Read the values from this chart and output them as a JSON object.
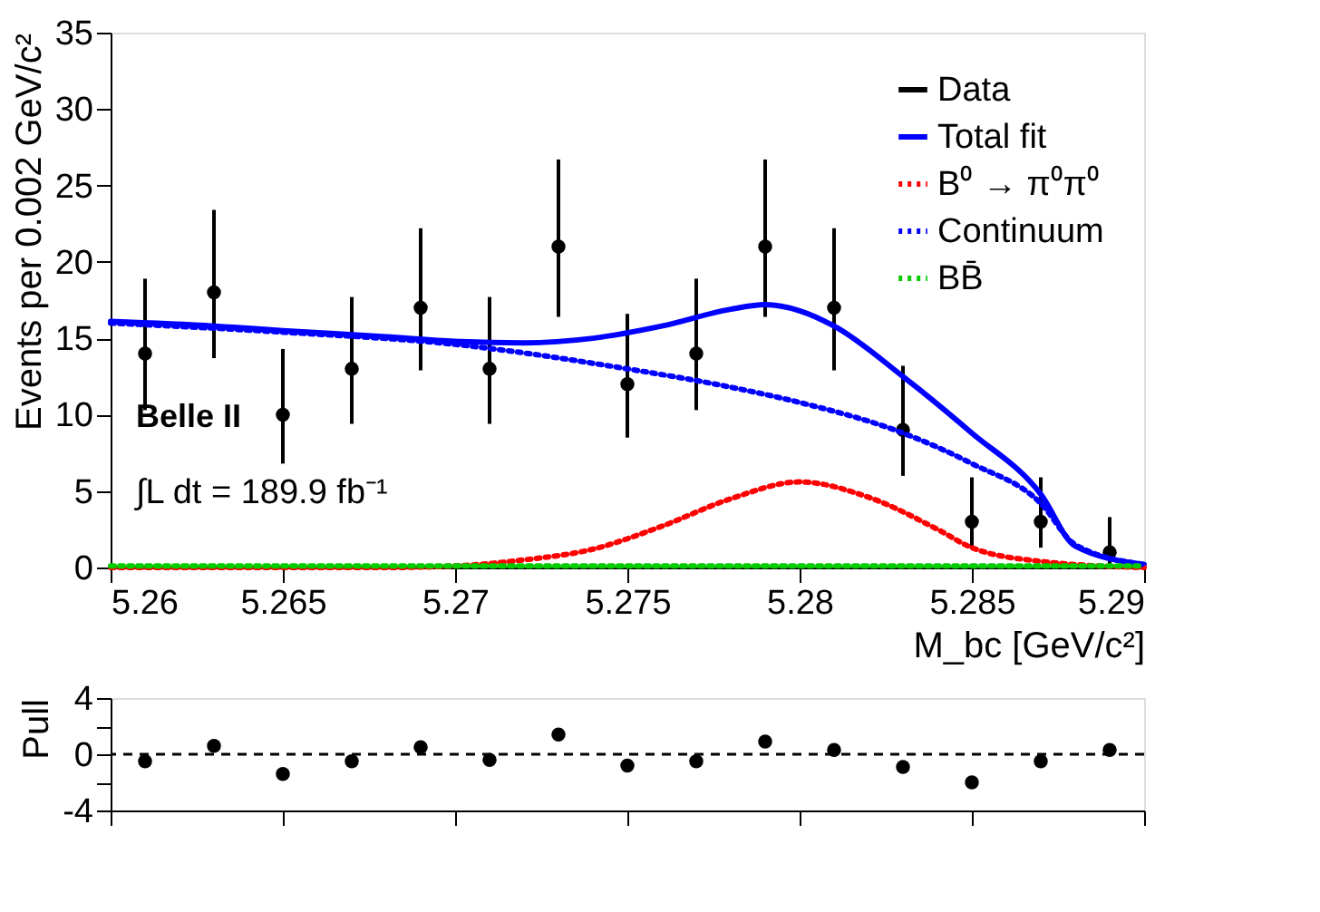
{
  "chart_data": [
    {
      "type": "line",
      "ylabel": "Events per 0.002 GeV/c²",
      "xlabel": "M_bc [GeV/c²]",
      "xlim": [
        5.26,
        5.29
      ],
      "xticks": [
        5.26,
        5.265,
        5.27,
        5.275,
        5.28,
        5.285,
        5.29
      ],
      "ylim": [
        0,
        35
      ],
      "yticks": [
        0,
        5,
        10,
        15,
        20,
        25,
        30,
        35
      ],
      "grid": false,
      "legend": "top right",
      "annotations": [
        "Belle II",
        "∫L dt = 189.9 fb⁻¹"
      ],
      "series": [
        {
          "name": "Data",
          "type": "scatter",
          "marker": "circle",
          "color": "#000000",
          "x": [
            5.261,
            5.263,
            5.265,
            5.267,
            5.269,
            5.271,
            5.273,
            5.275,
            5.277,
            5.279,
            5.281,
            5.283,
            5.285,
            5.287,
            5.289
          ],
          "values": [
            14,
            18,
            10,
            13,
            17,
            13,
            21,
            12,
            14,
            21,
            17,
            9,
            3,
            3,
            1
          ],
          "errors": [
            [
              10.3,
              18.9
            ],
            [
              13.7,
              23.4
            ],
            [
              6.8,
              14.3
            ],
            [
              9.4,
              17.7
            ],
            [
              12.9,
              22.2
            ],
            [
              9.4,
              17.7
            ],
            [
              16.4,
              26.7
            ],
            [
              8.5,
              16.6
            ],
            [
              10.3,
              18.9
            ],
            [
              16.4,
              26.7
            ],
            [
              12.9,
              22.2
            ],
            [
              6,
              13.2
            ],
            [
              1.3,
              5.9
            ],
            [
              1.3,
              5.9
            ],
            [
              0.2,
              3.3
            ]
          ]
        },
        {
          "name": "Total fit",
          "type": "line",
          "line_style": "solid",
          "color": "#0000ff",
          "x": [
            5.26,
            5.263,
            5.265,
            5.268,
            5.27,
            5.272,
            5.274,
            5.276,
            5.278,
            5.279,
            5.28,
            5.281,
            5.283,
            5.285,
            5.287,
            5.288,
            5.29
          ],
          "values": [
            16.1,
            15.8,
            15.5,
            15.1,
            14.8,
            14.7,
            15.0,
            15.8,
            16.9,
            17.2,
            16.8,
            15.8,
            12.5,
            8.8,
            4.8,
            1.4,
            0.2
          ]
        },
        {
          "name": "B⁰ → π⁰π⁰",
          "type": "line",
          "line_style": "dotted",
          "color": "#ff0000",
          "x": [
            5.26,
            5.268,
            5.27,
            5.272,
            5.274,
            5.276,
            5.278,
            5.28,
            5.282,
            5.284,
            5.285,
            5.287,
            5.29
          ],
          "values": [
            0,
            0,
            0.1,
            0.5,
            1.2,
            2.7,
            4.5,
            5.6,
            4.6,
            2.5,
            1.3,
            0.4,
            0
          ]
        },
        {
          "name": "Continuum",
          "type": "line",
          "line_style": "dotted",
          "color": "#0000ff",
          "x": [
            5.26,
            5.265,
            5.27,
            5.275,
            5.278,
            5.28,
            5.283,
            5.285,
            5.287,
            5.288,
            5.29
          ],
          "values": [
            16.0,
            15.4,
            14.6,
            13.0,
            11.8,
            10.8,
            8.8,
            6.8,
            4.2,
            1.5,
            0.2
          ]
        },
        {
          "name": "BB̄",
          "type": "line",
          "line_style": "dotted",
          "color": "#00cc00",
          "x": [
            5.26,
            5.29
          ],
          "values": [
            0.1,
            0.1
          ]
        }
      ]
    },
    {
      "type": "scatter",
      "ylabel": "Pull",
      "marker": "circle",
      "tick_labels": "y",
      "grid": false,
      "legend": false,
      "xlim": [
        5.26,
        5.29
      ],
      "xticks": [
        5.26,
        5.265,
        5.27,
        5.275,
        5.28,
        5.285,
        5.29
      ],
      "ylim": [
        -4,
        4
      ],
      "yticks": [
        -4,
        {
          "value": -2,
          "label": null
        },
        0,
        {
          "value": 2,
          "label": null
        },
        4
      ],
      "ref_lines": [
        {
          "axis": "y",
          "value": 0,
          "label": null,
          "color": "#000000",
          "line_style": "dashed"
        }
      ],
      "series": [
        {
          "color": "#000000",
          "x": [
            5.261,
            5.263,
            5.265,
            5.267,
            5.269,
            5.271,
            5.273,
            5.275,
            5.277,
            5.279,
            5.281,
            5.283,
            5.285,
            5.287,
            5.289
          ],
          "values": [
            -0.5,
            0.6,
            -1.4,
            -0.5,
            0.5,
            -0.4,
            1.4,
            -0.8,
            -0.5,
            0.9,
            0.3,
            -0.9,
            -2,
            -0.5,
            0.3
          ]
        }
      ]
    }
  ]
}
